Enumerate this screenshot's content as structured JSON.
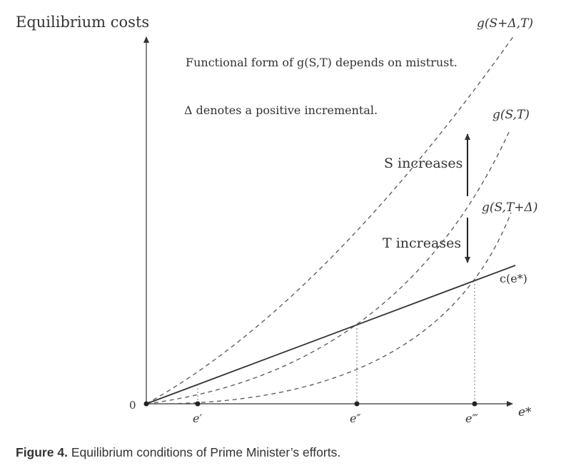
{
  "diagram": {
    "y_axis_label": "Equilibrium costs",
    "x_axis_label": "e*",
    "origin_label": "0",
    "note_1": "Functional form of g(S,T) depends on mistrust.",
    "note_2": "Δ denotes a positive incremental.",
    "s_increases_label": "S increases",
    "t_increases_label": "T increases",
    "curves": [
      {
        "label": "g(S+Δ,T)",
        "style": "dashed"
      },
      {
        "label": "g(S,T)",
        "style": "dashed"
      },
      {
        "label": "g(S,T+Δ)",
        "style": "dashed"
      },
      {
        "label": "c(e*)",
        "style": "solid"
      }
    ],
    "x_ticks": [
      "e′",
      "e″",
      "e‴"
    ]
  },
  "caption": {
    "figure_number": "Figure 4.",
    "text": "Equilibrium conditions of Prime Minister’s efforts."
  }
}
